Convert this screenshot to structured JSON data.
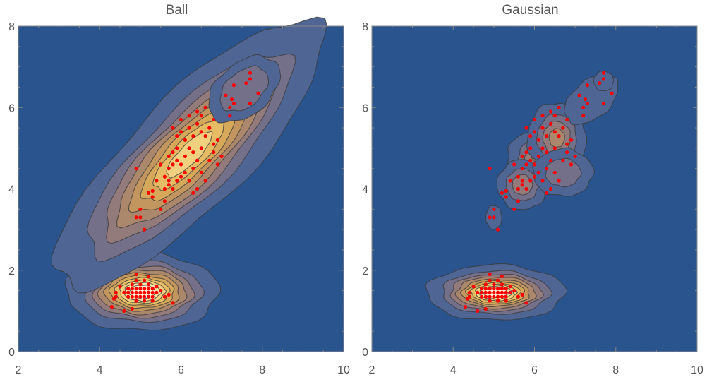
{
  "colors": {
    "background": "#2A548E",
    "contour_levels": [
      "#2A548E",
      "#4F6594",
      "#75708A",
      "#937A7B",
      "#AB876C",
      "#C2965E",
      "#D6A85A",
      "#E6BC64",
      "#F1D07F",
      "#F8E4A6",
      "#FCF3D2"
    ],
    "contour_line": "#3A3A3A",
    "points": "#FF0000",
    "frame": "#888888",
    "tick_text": "#555555"
  },
  "chart_data": [
    {
      "type": "contour",
      "title": "Ball",
      "xlim": [
        2,
        10
      ],
      "ylim": [
        0,
        8
      ],
      "xticks": [
        2,
        4,
        6,
        8,
        10
      ],
      "yticks": [
        0,
        2,
        4,
        6,
        8
      ],
      "grid": false,
      "clusters": [
        {
          "cx": 5.05,
          "cy": 1.47,
          "sx": 0.55,
          "sy": 0.28,
          "theta": 0,
          "peak": 1.0,
          "max_level": 10
        },
        {
          "cx": 6.2,
          "cy": 4.85,
          "sx": 1.35,
          "sy": 0.42,
          "theta": 45,
          "peak": 0.7,
          "max_level": 9
        },
        {
          "cx": 7.55,
          "cy": 6.45,
          "sx": 0.35,
          "sy": 0.22,
          "theta": 40,
          "peak": 0.2,
          "max_level": 2
        }
      ],
      "points": [
        [
          4.6,
          1.45
        ],
        [
          4.7,
          1.45
        ],
        [
          4.8,
          1.45
        ],
        [
          4.9,
          1.45
        ],
        [
          5.0,
          1.45
        ],
        [
          5.1,
          1.45
        ],
        [
          5.2,
          1.45
        ],
        [
          5.3,
          1.45
        ],
        [
          5.4,
          1.45
        ],
        [
          4.7,
          1.55
        ],
        [
          4.8,
          1.55
        ],
        [
          4.9,
          1.55
        ],
        [
          5.0,
          1.55
        ],
        [
          5.1,
          1.55
        ],
        [
          5.2,
          1.55
        ],
        [
          5.3,
          1.55
        ],
        [
          4.7,
          1.35
        ],
        [
          4.8,
          1.35
        ],
        [
          4.9,
          1.35
        ],
        [
          5.0,
          1.35
        ],
        [
          5.1,
          1.35
        ],
        [
          5.2,
          1.35
        ],
        [
          5.3,
          1.35
        ],
        [
          4.8,
          1.65
        ],
        [
          5.0,
          1.65
        ],
        [
          5.2,
          1.65
        ],
        [
          4.9,
          1.75
        ],
        [
          5.1,
          1.75
        ],
        [
          4.9,
          1.25
        ],
        [
          5.1,
          1.25
        ],
        [
          5.3,
          1.25
        ],
        [
          4.4,
          1.35
        ],
        [
          4.35,
          1.3
        ],
        [
          4.3,
          1.1
        ],
        [
          4.6,
          1.0
        ],
        [
          4.8,
          1.05
        ],
        [
          5.4,
          1.6
        ],
        [
          5.5,
          1.5
        ],
        [
          5.6,
          1.35
        ],
        [
          5.7,
          1.4
        ],
        [
          5.8,
          1.2
        ],
        [
          5.2,
          1.85
        ],
        [
          4.9,
          1.9
        ],
        [
          4.5,
          1.6
        ],
        [
          4.4,
          1.45
        ],
        [
          4.9,
          4.5
        ],
        [
          5.0,
          3.5
        ],
        [
          5.1,
          3.0
        ],
        [
          5.0,
          3.3
        ],
        [
          4.9,
          3.3
        ],
        [
          5.2,
          3.9
        ],
        [
          5.3,
          3.8
        ],
        [
          5.5,
          3.5
        ],
        [
          5.6,
          3.7
        ],
        [
          5.6,
          4.0
        ],
        [
          5.7,
          4.1
        ],
        [
          5.7,
          4.2
        ],
        [
          5.8,
          4.0
        ],
        [
          5.6,
          4.3
        ],
        [
          5.9,
          4.2
        ],
        [
          5.5,
          4.6
        ],
        [
          5.7,
          4.5
        ],
        [
          5.8,
          4.6
        ],
        [
          5.9,
          4.7
        ],
        [
          5.7,
          4.8
        ],
        [
          5.8,
          4.9
        ],
        [
          5.9,
          5.0
        ],
        [
          6.0,
          4.6
        ],
        [
          6.1,
          4.4
        ],
        [
          6.0,
          4.3
        ],
        [
          6.2,
          4.2
        ],
        [
          6.3,
          4.5
        ],
        [
          6.1,
          4.8
        ],
        [
          6.2,
          5.0
        ],
        [
          6.3,
          4.9
        ],
        [
          6.1,
          5.2
        ],
        [
          6.0,
          5.4
        ],
        [
          6.2,
          5.5
        ],
        [
          6.3,
          5.3
        ],
        [
          6.4,
          5.6
        ],
        [
          6.5,
          5.4
        ],
        [
          6.6,
          5.3
        ],
        [
          6.7,
          5.5
        ],
        [
          6.5,
          5.8
        ],
        [
          6.4,
          5.9
        ],
        [
          6.6,
          6.0
        ],
        [
          6.8,
          5.7
        ],
        [
          6.9,
          5.2
        ],
        [
          6.8,
          4.9
        ],
        [
          6.7,
          4.7
        ],
        [
          6.5,
          4.4
        ],
        [
          6.6,
          4.2
        ],
        [
          6.4,
          4.0
        ],
        [
          6.3,
          3.9
        ],
        [
          6.9,
          4.6
        ],
        [
          7.0,
          4.8
        ],
        [
          6.8,
          5.1
        ],
        [
          6.4,
          4.7
        ],
        [
          6.5,
          5.0
        ],
        [
          6.2,
          5.8
        ],
        [
          6.0,
          5.7
        ],
        [
          5.8,
          5.5
        ],
        [
          5.9,
          5.3
        ],
        [
          7.2,
          5.8
        ],
        [
          7.2,
          6.0
        ],
        [
          7.3,
          6.1
        ],
        [
          7.1,
          6.3
        ],
        [
          7.25,
          6.2
        ],
        [
          7.3,
          6.55
        ],
        [
          7.6,
          6.6
        ],
        [
          7.7,
          6.7
        ],
        [
          7.7,
          6.85
        ],
        [
          7.9,
          6.35
        ],
        [
          7.7,
          6.1
        ],
        [
          5.3,
          3.95
        ],
        [
          5.4,
          4.2
        ]
      ]
    },
    {
      "type": "contour",
      "title": "Gaussian",
      "xlim": [
        2,
        10
      ],
      "ylim": [
        0,
        8
      ],
      "xticks": [
        2,
        4,
        6,
        8,
        10
      ],
      "yticks": [
        0,
        2,
        4,
        6,
        8
      ],
      "grid": false,
      "clusters": [
        {
          "cx": 5.05,
          "cy": 1.45,
          "sx": 0.5,
          "sy": 0.2,
          "theta": 0,
          "peak": 1.0,
          "max_level": 10
        },
        {
          "cx": 6.2,
          "cy": 4.8,
          "sx": 0.3,
          "sy": 0.22,
          "theta": 0,
          "peak": 0.22,
          "max_level": 4
        },
        {
          "cx": 6.55,
          "cy": 5.25,
          "sx": 0.25,
          "sy": 0.3,
          "theta": 0,
          "peak": 0.2,
          "max_level": 4
        },
        {
          "cx": 5.7,
          "cy": 4.1,
          "sx": 0.22,
          "sy": 0.22,
          "theta": 0,
          "peak": 0.15,
          "max_level": 3
        },
        {
          "cx": 6.7,
          "cy": 4.4,
          "sx": 0.28,
          "sy": 0.22,
          "theta": 0,
          "peak": 0.1,
          "max_level": 2
        },
        {
          "cx": 7.4,
          "cy": 6.2,
          "sx": 0.3,
          "sy": 0.18,
          "theta": 40,
          "peak": 0.08,
          "max_level": 1
        },
        {
          "cx": 5.0,
          "cy": 3.3,
          "sx": 0.08,
          "sy": 0.12,
          "theta": 0,
          "peak": 0.06,
          "max_level": 1
        },
        {
          "cx": 7.7,
          "cy": 6.65,
          "sx": 0.1,
          "sy": 0.1,
          "theta": 0,
          "peak": 0.06,
          "max_level": 1
        }
      ],
      "points": [
        [
          4.6,
          1.45
        ],
        [
          4.7,
          1.45
        ],
        [
          4.8,
          1.45
        ],
        [
          4.9,
          1.45
        ],
        [
          5.0,
          1.45
        ],
        [
          5.1,
          1.45
        ],
        [
          5.2,
          1.45
        ],
        [
          5.3,
          1.45
        ],
        [
          5.4,
          1.45
        ],
        [
          4.7,
          1.55
        ],
        [
          4.8,
          1.55
        ],
        [
          4.9,
          1.55
        ],
        [
          5.0,
          1.55
        ],
        [
          5.1,
          1.55
        ],
        [
          5.2,
          1.55
        ],
        [
          5.3,
          1.55
        ],
        [
          4.7,
          1.35
        ],
        [
          4.8,
          1.35
        ],
        [
          4.9,
          1.35
        ],
        [
          5.0,
          1.35
        ],
        [
          5.1,
          1.35
        ],
        [
          5.2,
          1.35
        ],
        [
          5.3,
          1.35
        ],
        [
          4.8,
          1.65
        ],
        [
          5.0,
          1.65
        ],
        [
          5.2,
          1.65
        ],
        [
          4.9,
          1.75
        ],
        [
          5.1,
          1.75
        ],
        [
          4.9,
          1.25
        ],
        [
          5.1,
          1.25
        ],
        [
          5.3,
          1.25
        ],
        [
          4.4,
          1.35
        ],
        [
          4.35,
          1.3
        ],
        [
          4.3,
          1.1
        ],
        [
          4.6,
          1.0
        ],
        [
          4.8,
          1.05
        ],
        [
          5.4,
          1.6
        ],
        [
          5.5,
          1.5
        ],
        [
          5.6,
          1.35
        ],
        [
          5.7,
          1.4
        ],
        [
          5.8,
          1.2
        ],
        [
          5.2,
          1.85
        ],
        [
          4.9,
          1.9
        ],
        [
          4.5,
          1.6
        ],
        [
          4.4,
          1.45
        ],
        [
          4.9,
          4.5
        ],
        [
          5.0,
          3.5
        ],
        [
          5.1,
          3.0
        ],
        [
          5.0,
          3.3
        ],
        [
          4.9,
          3.3
        ],
        [
          5.2,
          3.9
        ],
        [
          5.3,
          3.8
        ],
        [
          5.5,
          3.5
        ],
        [
          5.6,
          3.7
        ],
        [
          5.6,
          4.0
        ],
        [
          5.7,
          4.1
        ],
        [
          5.7,
          4.2
        ],
        [
          5.8,
          4.0
        ],
        [
          5.6,
          4.3
        ],
        [
          5.9,
          4.2
        ],
        [
          5.5,
          4.6
        ],
        [
          5.7,
          4.5
        ],
        [
          5.8,
          4.6
        ],
        [
          5.9,
          4.7
        ],
        [
          5.7,
          4.8
        ],
        [
          5.8,
          4.9
        ],
        [
          5.9,
          5.0
        ],
        [
          6.0,
          4.6
        ],
        [
          6.1,
          4.4
        ],
        [
          6.0,
          4.3
        ],
        [
          6.2,
          4.2
        ],
        [
          6.3,
          4.5
        ],
        [
          6.1,
          4.8
        ],
        [
          6.2,
          5.0
        ],
        [
          6.3,
          4.9
        ],
        [
          6.1,
          5.2
        ],
        [
          6.0,
          5.4
        ],
        [
          6.2,
          5.5
        ],
        [
          6.3,
          5.3
        ],
        [
          6.4,
          5.6
        ],
        [
          6.5,
          5.4
        ],
        [
          6.6,
          5.3
        ],
        [
          6.7,
          5.5
        ],
        [
          6.5,
          5.8
        ],
        [
          6.4,
          5.9
        ],
        [
          6.6,
          6.0
        ],
        [
          6.8,
          5.7
        ],
        [
          6.9,
          5.2
        ],
        [
          6.8,
          4.9
        ],
        [
          6.7,
          4.7
        ],
        [
          6.5,
          4.4
        ],
        [
          6.6,
          4.2
        ],
        [
          6.4,
          4.0
        ],
        [
          6.3,
          3.9
        ],
        [
          6.9,
          4.6
        ],
        [
          7.0,
          4.8
        ],
        [
          6.8,
          5.1
        ],
        [
          6.4,
          4.7
        ],
        [
          6.5,
          5.0
        ],
        [
          6.2,
          5.8
        ],
        [
          6.0,
          5.7
        ],
        [
          5.8,
          5.5
        ],
        [
          5.9,
          5.3
        ],
        [
          7.2,
          5.8
        ],
        [
          7.2,
          6.0
        ],
        [
          7.3,
          6.1
        ],
        [
          7.1,
          6.3
        ],
        [
          7.25,
          6.2
        ],
        [
          7.3,
          6.55
        ],
        [
          7.6,
          6.6
        ],
        [
          7.7,
          6.7
        ],
        [
          7.7,
          6.85
        ],
        [
          7.9,
          6.35
        ],
        [
          7.7,
          6.1
        ],
        [
          5.3,
          3.95
        ],
        [
          5.4,
          4.2
        ]
      ]
    }
  ]
}
